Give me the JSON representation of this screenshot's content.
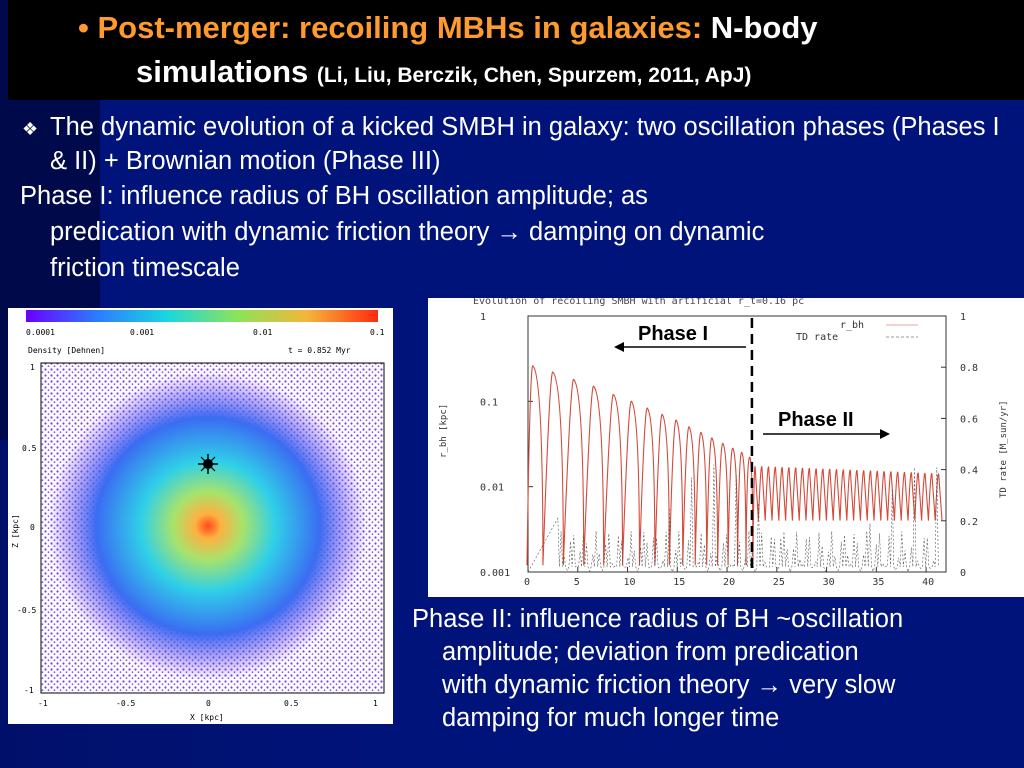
{
  "title": {
    "bullet": "•",
    "part1": "Post-merger: recoiling MBHs in galaxies:",
    "part2": "N-body",
    "part3": "simulations",
    "citation": "(Li, Liu, Berczik, Chen, Spurzem, 2011, ApJ)"
  },
  "bullets": {
    "b1_mark": "❖",
    "b1": "The dynamic evolution of a kicked SMBH in galaxy: two oscillation phases (Phases I & II) + Brownian motion (Phase III)",
    "b2_line1": "Phase I: influence radius of BH  oscillation amplitude; as",
    "b2_line2": "predication with dynamic friction theory → damping on dynamic",
    "b2_line3": "friction timescale",
    "b3_line1": "Phase II: influence radius of BH ~oscillation",
    "b3_line2": "amplitude; deviation from predication",
    "b3_line3": "with dynamic friction theory → very slow",
    "b3_line4": "damping for much longer time"
  },
  "sim": {
    "colorbar_ticks": [
      "0.0001",
      "0.001",
      "0.01",
      "0.1"
    ],
    "label_density": "Density [Dehnen]",
    "label_time": "t = 0.852 Myr",
    "y_ticks": [
      "1",
      "0.5",
      "0",
      "-0.5",
      "-1"
    ],
    "x_ticks": [
      "-1",
      "-0.5",
      "0",
      "0.5",
      "1"
    ],
    "xlabel": "X [kpc]",
    "ylabel": "Z [kpc]"
  },
  "chart_data": {
    "type": "line",
    "title": "Evolution of recoiling SMBH with artificial r_t=0.16 pc",
    "xlabel": "",
    "ylabel": "r_bh [kpc]",
    "ylabel_right": "TD rate [M_sun/yr]",
    "xlim": [
      0,
      42
    ],
    "ylim": [
      0.001,
      1
    ],
    "ylim_right": [
      0,
      1
    ],
    "yscale": "log",
    "x_ticks": [
      "0",
      "5",
      "10",
      "15",
      "20",
      "25",
      "30",
      "35",
      "40"
    ],
    "y_ticks": [
      "1",
      "0.1",
      "0.01",
      "0.001"
    ],
    "y_right_ticks": [
      "1",
      "0.8",
      "0.6",
      "0.4",
      "0.2",
      "0"
    ],
    "legend": [
      "r_bh",
      "TD rate"
    ],
    "legend_position": "top-right",
    "annotations": [
      "Phase I",
      "Phase II"
    ],
    "phase_boundary_x": 22.5,
    "series": [
      {
        "name": "r_bh",
        "color": "#d44a3a",
        "x": [
          0.5,
          2.5,
          4.6,
          6.6,
          8.6,
          10.4,
          12.0,
          13.5,
          14.9,
          16.2,
          17.4,
          18.5,
          19.6,
          20.6,
          21.5,
          22.3
        ],
        "y": [
          0.26,
          0.22,
          0.18,
          0.15,
          0.12,
          0.1,
          0.083,
          0.07,
          0.06,
          0.05,
          0.043,
          0.037,
          0.032,
          0.028,
          0.025,
          0.022
        ]
      },
      {
        "name": "TD rate",
        "color": "#555555",
        "x": [],
        "y": []
      }
    ]
  },
  "colors": {
    "background": "#00137a",
    "title_accent": "#ff9a2e",
    "rbh_line": "#d44a3a",
    "td_line": "#555555"
  }
}
